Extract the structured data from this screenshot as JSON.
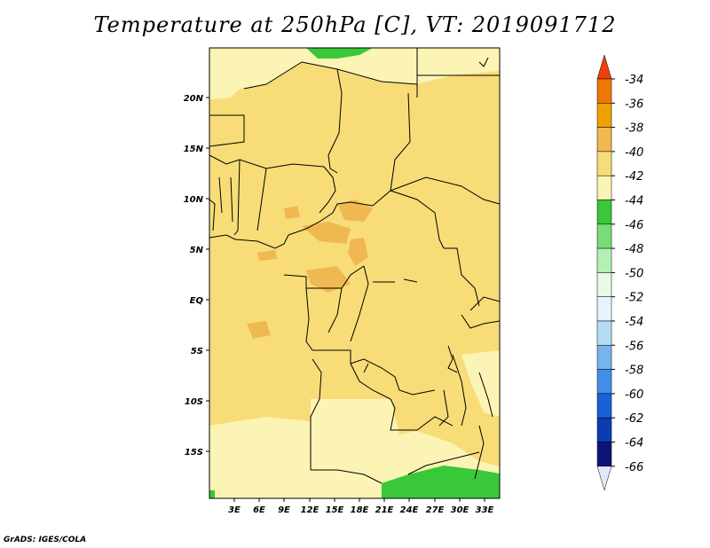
{
  "title": "Temperature at 250hPa [C], VT: 2019091712",
  "credit": "GrADS: IGES/COLA",
  "map": {
    "lon_labels": [
      "3E",
      "6E",
      "9E",
      "12E",
      "15E",
      "18E",
      "21E",
      "24E",
      "27E",
      "30E",
      "33E"
    ],
    "lat_labels": [
      "20N",
      "15N",
      "10N",
      "5N",
      "EQ",
      "5S",
      "10S",
      "15S"
    ],
    "colors": {
      "land_main": "#f8dc78",
      "warm_patch": "#f0b850",
      "cool_patch": "#fcf4b4",
      "green": "#38c838",
      "border": "#000000"
    }
  },
  "colorbar": {
    "labels": [
      "-34",
      "-36",
      "-38",
      "-40",
      "-42",
      "-44",
      "-46",
      "-48",
      "-50",
      "-52",
      "-54",
      "-56",
      "-58",
      "-60",
      "-62",
      "-64",
      "-66"
    ],
    "colors": [
      "#f04010",
      "#f07800",
      "#f0a000",
      "#f0b850",
      "#f8dc78",
      "#fcf4b4",
      "#38c838",
      "#78dc78",
      "#b4f0b4",
      "#e6fae6",
      "#e6f4fc",
      "#b4dcf4",
      "#78b4f0",
      "#4090e8",
      "#1860d8",
      "#0c3cb4",
      "#0c1478",
      "#e6e6fa"
    ]
  }
}
